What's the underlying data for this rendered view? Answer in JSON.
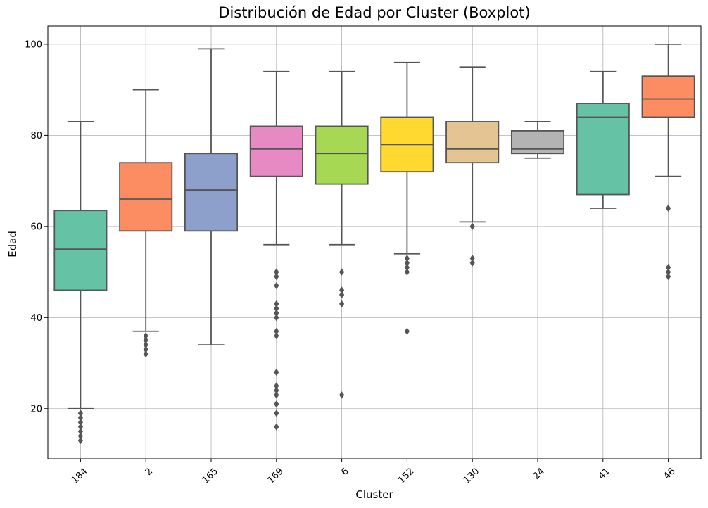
{
  "chart_data": {
    "type": "boxplot",
    "title": "Distribución de Edad por Cluster (Boxplot)",
    "xlabel": "Cluster",
    "ylabel": "Edad",
    "ylim": [
      9,
      104
    ],
    "yticks": [
      20,
      40,
      60,
      80,
      100
    ],
    "grid": true,
    "xtick_rotation": 45,
    "categories": [
      "184",
      "2",
      "165",
      "169",
      "6",
      "152",
      "130",
      "24",
      "41",
      "46"
    ],
    "colors": [
      "#66c2a5",
      "#fc8d62",
      "#8da0cb",
      "#e78ac3",
      "#a6d854",
      "#ffd92f",
      "#e5c494",
      "#b3b3b3",
      "#66c2a5",
      "#fc8d62"
    ],
    "boxes": [
      {
        "category": "184",
        "whisker_low": 20,
        "q1": 46,
        "median": 55,
        "q3": 63.5,
        "whisker_high": 83,
        "outliers": [
          19,
          18,
          17,
          16,
          15,
          14,
          13
        ]
      },
      {
        "category": "2",
        "whisker_low": 37,
        "q1": 59,
        "median": 66,
        "q3": 74,
        "whisker_high": 90,
        "outliers": [
          36,
          35,
          34,
          33,
          32
        ]
      },
      {
        "category": "165",
        "whisker_low": 34,
        "q1": 59,
        "median": 68,
        "q3": 76,
        "whisker_high": 99,
        "outliers": []
      },
      {
        "category": "169",
        "whisker_low": 56,
        "q1": 71,
        "median": 77,
        "q3": 82,
        "whisker_high": 94,
        "outliers": [
          50,
          49,
          47,
          43,
          42,
          41,
          40,
          37,
          36,
          28,
          25,
          24,
          23,
          21,
          19,
          16
        ]
      },
      {
        "category": "6",
        "whisker_low": 56,
        "q1": 69.3,
        "median": 76,
        "q3": 82,
        "whisker_high": 94,
        "outliers": [
          50,
          46,
          45,
          43,
          23
        ]
      },
      {
        "category": "152",
        "whisker_low": 54,
        "q1": 72,
        "median": 78,
        "q3": 84,
        "whisker_high": 96,
        "outliers": [
          53,
          52,
          51,
          50,
          37
        ]
      },
      {
        "category": "130",
        "whisker_low": 61,
        "q1": 74,
        "median": 77,
        "q3": 83,
        "whisker_high": 95,
        "outliers": [
          60,
          53,
          52
        ]
      },
      {
        "category": "24",
        "whisker_low": 75,
        "q1": 76,
        "median": 77,
        "q3": 81,
        "whisker_high": 83,
        "outliers": []
      },
      {
        "category": "41",
        "whisker_low": 64,
        "q1": 67,
        "median": 84,
        "q3": 87,
        "whisker_high": 94,
        "outliers": []
      },
      {
        "category": "46",
        "whisker_low": 71,
        "q1": 84,
        "median": 88,
        "q3": 93,
        "whisker_high": 100,
        "outliers": [
          64,
          51,
          50,
          49
        ]
      }
    ]
  }
}
